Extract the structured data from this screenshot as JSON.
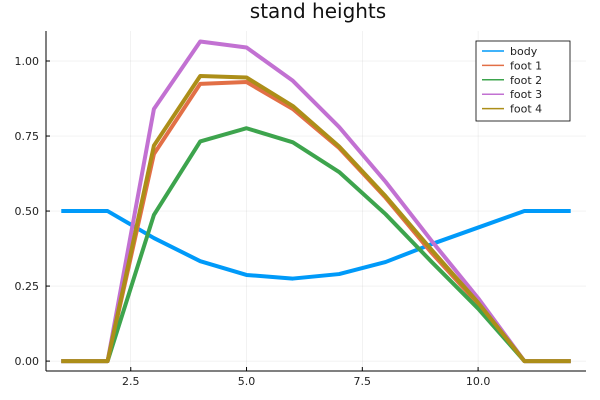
{
  "chart_data": {
    "type": "line",
    "title": "stand heights",
    "xlabel": "",
    "ylabel": "",
    "xlim": [
      0.67,
      12.33
    ],
    "ylim": [
      -0.033,
      1.1
    ],
    "xticks": [
      2.5,
      5.0,
      7.5,
      10.0
    ],
    "xtick_labels": [
      "2.5",
      "5.0",
      "7.5",
      "10.0"
    ],
    "yticks": [
      0.0,
      0.25,
      0.5,
      0.75,
      1.0
    ],
    "ytick_labels": [
      "0.00",
      "0.25",
      "0.50",
      "0.75",
      "1.00"
    ],
    "grid": true,
    "legend_position": "top-right",
    "x": [
      1,
      2,
      3,
      4,
      5,
      6,
      7,
      8,
      9,
      10,
      11,
      12
    ],
    "series": [
      {
        "name": "body",
        "color": "#009af9",
        "values": [
          0.5,
          0.5,
          0.41,
          0.333,
          0.287,
          0.275,
          0.29,
          0.33,
          0.39,
          0.445,
          0.5,
          0.5
        ]
      },
      {
        "name": "foot 1",
        "color": "#e26f46",
        "values": [
          0.0,
          0.0,
          0.69,
          0.924,
          0.93,
          0.84,
          0.71,
          0.545,
          0.36,
          0.19,
          0.0,
          0.0
        ]
      },
      {
        "name": "foot 2",
        "color": "#3da44d",
        "values": [
          0.0,
          0.0,
          0.487,
          0.732,
          0.776,
          0.729,
          0.63,
          0.49,
          0.33,
          0.175,
          0.0,
          0.0
        ]
      },
      {
        "name": "foot 3",
        "color": "#c271d2",
        "values": [
          0.0,
          0.0,
          0.84,
          1.065,
          1.045,
          0.934,
          0.78,
          0.598,
          0.4,
          0.21,
          0.0,
          0.0
        ]
      },
      {
        "name": "foot 4",
        "color": "#ac8e18",
        "values": [
          0.0,
          0.0,
          0.718,
          0.95,
          0.945,
          0.85,
          0.715,
          0.55,
          0.37,
          0.195,
          0.0,
          0.0
        ]
      }
    ]
  }
}
